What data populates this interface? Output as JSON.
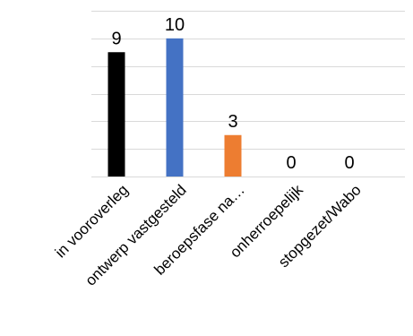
{
  "chart_data": {
    "type": "bar",
    "categories": [
      "in vooroverleg",
      "ontwerp vastgesteld",
      "beroepsfase na…",
      "onherroepelijk",
      "stopgezet/Wabo"
    ],
    "values": [
      9,
      10,
      3,
      0,
      0
    ],
    "colors": [
      "#000000",
      "#4472c4",
      "#ed7d31",
      "#a5a5a5",
      "#ffc000"
    ],
    "data_labels": [
      "9",
      "10",
      "3",
      "0",
      "0"
    ],
    "ylim": [
      0,
      12
    ],
    "grid": true,
    "legend": "none",
    "title": "",
    "xlabel": "",
    "ylabel": ""
  }
}
